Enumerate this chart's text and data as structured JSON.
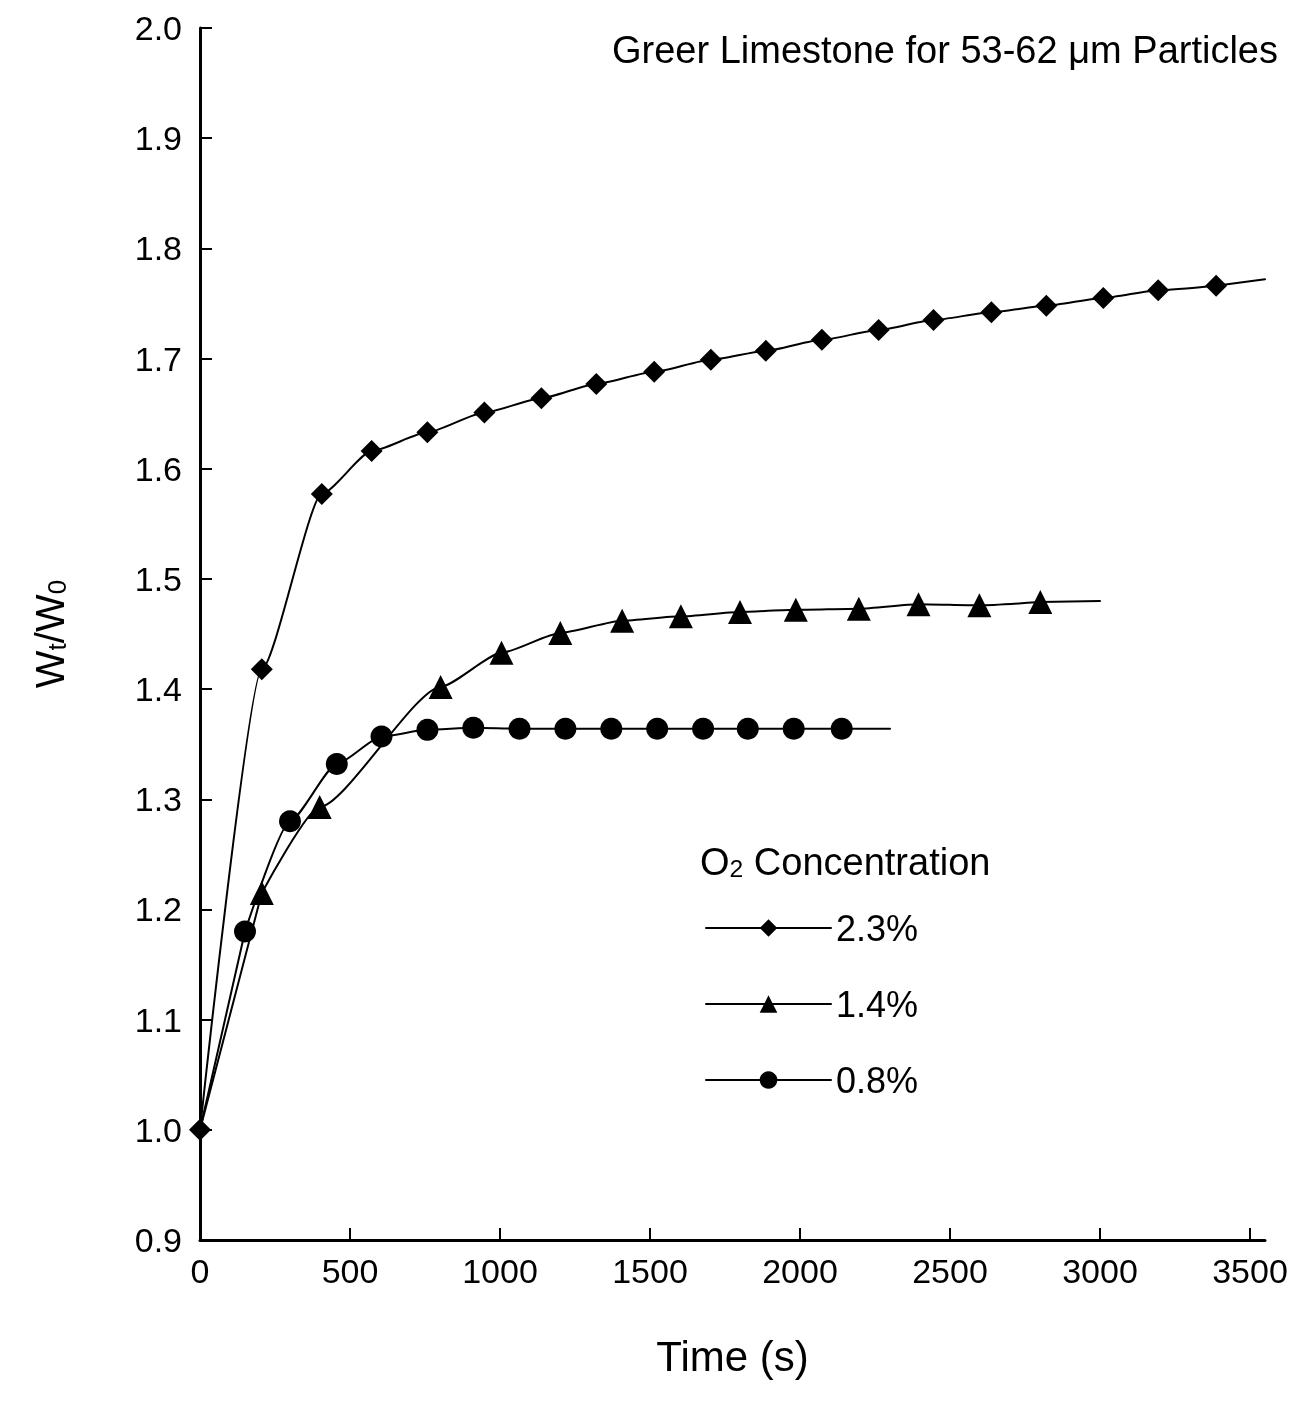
{
  "chart_data": {
    "type": "line",
    "title": "Greer Limestone for 53-62 μm Particles",
    "xlabel": "Time (s)",
    "ylabel": "W$_{t}$/W$_{0}$",
    "legend_title": "O$_{2}$ Concentration",
    "xlim": [
      0,
      3550
    ],
    "xticks": [
      0,
      500,
      1000,
      1500,
      2000,
      2500,
      3000,
      3500
    ],
    "ylim": [
      0.9,
      2.0
    ],
    "yticks": [
      0.9,
      {
        "value": 1.0,
        "label": "1.0"
      },
      1.1,
      1.2,
      1.3,
      1.4,
      1.5,
      1.6,
      1.7,
      1.8,
      1.9,
      {
        "value": 2.0,
        "label": "2.0"
      }
    ],
    "grid": false,
    "legend": "right",
    "series": [
      {
        "name": "2.3%",
        "color": "#000000",
        "marker": "diamond",
        "x": [
          0,
          206,
          406,
          572,
          758,
          948,
          1138,
          1321,
          1514,
          1703,
          1886,
          2073,
          2262,
          2445,
          2638,
          2821,
          3011,
          3194,
          3387
        ],
        "values": [
          1.0,
          1.418,
          1.577,
          1.616,
          1.633,
          1.651,
          1.664,
          1.677,
          1.688,
          1.699,
          1.707,
          1.717,
          1.726,
          1.735,
          1.742,
          1.748,
          1.755,
          1.762,
          1.766
        ]
      },
      {
        "name": "1.4%",
        "color": "#000000",
        "marker": "triangle",
        "x": [
          206,
          399,
          599,
          802,
          1005,
          1201,
          1407,
          1603,
          1800,
          1986,
          2196,
          2395,
          2598,
          2801
        ],
        "values": [
          1.215,
          1.293,
          null,
          1.402,
          1.433,
          1.451,
          1.462,
          1.466,
          1.47,
          1.472,
          1.473,
          1.477,
          1.476,
          1.479
        ]
      },
      {
        "name": "0.8%",
        "color": "#000000",
        "marker": "circle",
        "x": [
          150,
          300,
          456,
          605,
          758,
          911,
          1065,
          1218,
          1371,
          1524,
          1677,
          1826,
          1979,
          2139
        ],
        "values": [
          1.18,
          1.28,
          1.332,
          1.357,
          1.363,
          1.365,
          1.364,
          1.364,
          1.364,
          1.364,
          1.364,
          1.364,
          1.364,
          1.364
        ]
      },
      {
        "color": "#000000",
        "marker": "none",
        "x": [
          0,
          206
        ],
        "values": [
          1.0,
          1.215
        ]
      },
      {
        "color": "#000000",
        "marker": "none",
        "x": [
          0,
          150
        ],
        "values": [
          1.0,
          1.18
        ]
      },
      {
        "color": "#000000",
        "marker": "none",
        "x": [
          3387,
          3550
        ],
        "values": [
          1.766,
          1.772
        ]
      },
      {
        "color": "#000000",
        "marker": "none",
        "x": [
          2801,
          3000
        ],
        "values": [
          1.479,
          1.48
        ]
      },
      {
        "color": "#000000",
        "marker": "none",
        "x": [
          2139,
          2300
        ],
        "values": [
          1.364,
          1.364
        ]
      }
    ]
  }
}
